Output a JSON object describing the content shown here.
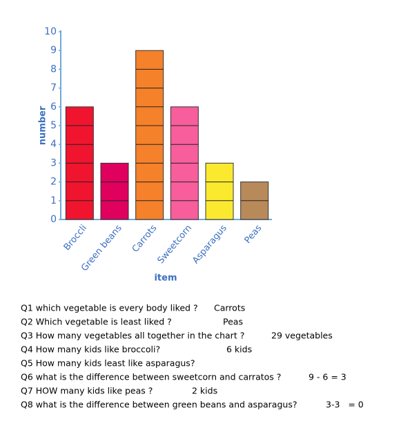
{
  "chart_data": {
    "type": "bar",
    "x_label": "item",
    "y_label": "number",
    "categories": [
      "Broccli",
      "Green beans",
      "Carrots",
      "Sweetcorn",
      "Asparagus",
      "Peas"
    ],
    "values": [
      6,
      3,
      9,
      6,
      3,
      2
    ],
    "colors": [
      "#f0142f",
      "#e0005e",
      "#f5812a",
      "#f75e9b",
      "#fbe930",
      "#b88a5a"
    ],
    "ylim": [
      0,
      10
    ],
    "yticks": [
      0,
      1,
      2,
      3,
      4,
      5,
      6,
      7,
      8,
      9,
      10
    ],
    "grid": false
  },
  "questions": [
    {
      "question": "Q1 which vegetable is every body liked ?",
      "answer": "Carrots"
    },
    {
      "question": "Q2 Which vegetable is least liked ?",
      "answer": "Peas"
    },
    {
      "question": "Q3 How many vegetables all together in the chart ?",
      "answer": "29 vegetables"
    },
    {
      "question": "Q4 How many kids like broccoli?",
      "answer": "6 kids"
    },
    {
      "question": "Q5 How many kids least like asparagus?"
    },
    {
      "question": "Q6 what is the difference between sweetcorn and carratos ?",
      "answer": "9 - 6 = 3"
    },
    {
      "question": "Q7 HOW many kids like peas ?",
      "answer": "2 kids"
    },
    {
      "question": "Q8 what is the difference between green beans and asparagus?",
      "answer": "3-3   = 0"
    }
  ]
}
